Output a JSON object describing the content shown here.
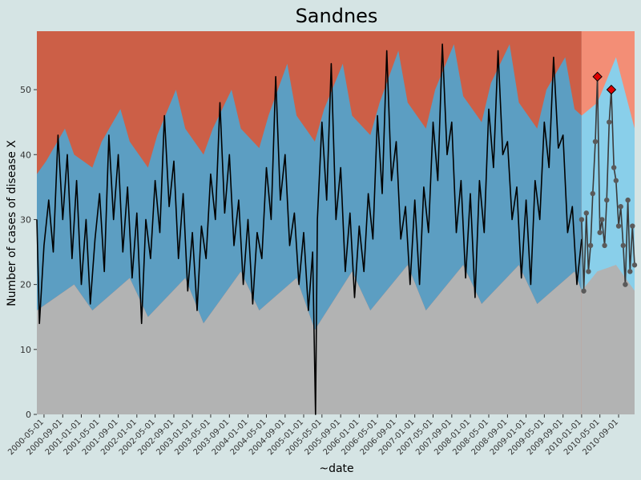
{
  "chart_data": {
    "type": "area",
    "title": "Sandnes",
    "xlabel": "~date",
    "ylabel": "Number of cases of disease X",
    "ylim": [
      0,
      59
    ],
    "yticks": [
      0,
      10,
      20,
      30,
      40,
      50
    ],
    "xlim": [
      "2000-03-15",
      "2010-12-15"
    ],
    "xticks": [
      "2000-05-01",
      "2000-09-01",
      "2001-01-01",
      "2001-05-01",
      "2001-09-01",
      "2002-01-01",
      "2002-05-01",
      "2002-09-01",
      "2003-01-01",
      "2003-05-01",
      "2003-09-01",
      "2004-01-01",
      "2004-05-01",
      "2004-09-01",
      "2005-01-01",
      "2005-05-01",
      "2005-09-01",
      "2006-01-01",
      "2006-05-01",
      "2006-09-01",
      "2007-01-01",
      "2007-05-01",
      "2007-09-01",
      "2008-01-01",
      "2008-05-01",
      "2008-09-01",
      "2009-01-01",
      "2009-05-01",
      "2009-09-01",
      "2010-01-01",
      "2010-05-01",
      "2010-09-01"
    ],
    "prediction_start": "2010-01-01",
    "series": [
      {
        "role": "lower-band",
        "x": [
          "2000-03-15",
          "2000-11-15",
          "2001-03-15",
          "2001-11-15",
          "2002-03-15",
          "2002-11-15",
          "2003-03-15",
          "2003-11-15",
          "2004-03-15",
          "2004-11-15",
          "2005-03-15",
          "2005-11-15",
          "2006-03-15",
          "2006-11-15",
          "2007-03-15",
          "2007-11-15",
          "2008-03-15",
          "2008-11-15",
          "2009-03-15",
          "2009-11-15",
          "2010-01-01",
          "2010-04-15",
          "2010-08-15",
          "2010-12-15"
        ],
        "values": [
          16,
          20,
          16,
          21,
          15,
          21,
          14,
          22,
          16,
          21,
          13,
          22,
          16,
          23,
          16,
          23,
          17,
          23,
          17,
          22,
          19,
          22,
          23,
          19
        ]
      },
      {
        "role": "upper-band",
        "x": [
          "2000-03-15",
          "2000-05-15",
          "2000-09-15",
          "2000-11-15",
          "2001-03-15",
          "2001-05-15",
          "2001-09-15",
          "2001-11-15",
          "2002-03-15",
          "2002-05-15",
          "2002-09-15",
          "2002-11-15",
          "2003-03-15",
          "2003-05-15",
          "2003-09-15",
          "2003-11-15",
          "2004-03-15",
          "2004-05-15",
          "2004-09-15",
          "2004-11-15",
          "2005-03-15",
          "2005-05-15",
          "2005-09-15",
          "2005-11-15",
          "2006-03-15",
          "2006-05-15",
          "2006-09-15",
          "2006-11-15",
          "2007-03-15",
          "2007-05-15",
          "2007-09-15",
          "2007-11-15",
          "2008-03-15",
          "2008-05-15",
          "2008-09-15",
          "2008-11-15",
          "2009-03-15",
          "2009-05-15",
          "2009-09-15",
          "2009-11-15",
          "2010-01-01",
          "2010-04-15",
          "2010-08-15",
          "2010-12-15"
        ],
        "values": [
          37,
          39,
          44,
          40,
          38,
          42,
          47,
          42,
          38,
          43,
          50,
          44,
          40,
          44,
          50,
          44,
          41,
          46,
          54,
          46,
          42,
          47,
          54,
          46,
          43,
          48,
          56,
          48,
          44,
          50,
          57,
          49,
          45,
          51,
          57,
          48,
          44,
          50,
          55,
          47,
          46,
          48,
          55,
          44
        ]
      },
      {
        "role": "observed",
        "x": [
          "2000-03-15",
          "2000-04-01",
          "2000-05-01",
          "2000-06-01",
          "2000-07-01",
          "2000-08-01",
          "2000-09-01",
          "2000-10-01",
          "2000-11-01",
          "2000-12-01",
          "2001-01-01",
          "2001-02-01",
          "2001-03-01",
          "2001-04-01",
          "2001-05-01",
          "2001-06-01",
          "2001-07-01",
          "2001-08-01",
          "2001-09-01",
          "2001-10-01",
          "2001-11-01",
          "2001-12-01",
          "2002-01-01",
          "2002-02-01",
          "2002-03-01",
          "2002-04-01",
          "2002-05-01",
          "2002-06-01",
          "2002-07-01",
          "2002-08-01",
          "2002-09-01",
          "2002-10-01",
          "2002-11-01",
          "2002-12-01",
          "2003-01-01",
          "2003-02-01",
          "2003-03-01",
          "2003-04-01",
          "2003-05-01",
          "2003-06-01",
          "2003-07-01",
          "2003-08-01",
          "2003-09-01",
          "2003-10-01",
          "2003-11-01",
          "2003-12-01",
          "2004-01-01",
          "2004-02-01",
          "2004-03-01",
          "2004-04-01",
          "2004-05-01",
          "2004-06-01",
          "2004-07-01",
          "2004-08-01",
          "2004-09-01",
          "2004-10-01",
          "2004-11-01",
          "2004-12-01",
          "2005-01-01",
          "2005-02-01",
          "2005-03-01",
          "2005-03-20",
          "2005-04-01",
          "2005-05-01",
          "2005-06-01",
          "2005-07-01",
          "2005-08-01",
          "2005-09-01",
          "2005-10-01",
          "2005-11-01",
          "2005-12-01",
          "2006-01-01",
          "2006-02-01",
          "2006-03-01",
          "2006-04-01",
          "2006-05-01",
          "2006-06-01",
          "2006-07-01",
          "2006-08-01",
          "2006-09-01",
          "2006-10-01",
          "2006-11-01",
          "2006-12-01",
          "2007-01-01",
          "2007-02-01",
          "2007-03-01",
          "2007-04-01",
          "2007-05-01",
          "2007-06-01",
          "2007-07-01",
          "2007-08-01",
          "2007-09-01",
          "2007-10-01",
          "2007-11-01",
          "2007-12-01",
          "2008-01-01",
          "2008-02-01",
          "2008-03-01",
          "2008-04-01",
          "2008-05-01",
          "2008-06-01",
          "2008-07-01",
          "2008-08-01",
          "2008-09-01",
          "2008-10-01",
          "2008-11-01",
          "2008-12-01",
          "2009-01-01",
          "2009-02-01",
          "2009-03-01",
          "2009-04-01",
          "2009-05-01",
          "2009-06-01",
          "2009-07-01",
          "2009-08-01",
          "2009-09-01",
          "2009-10-01",
          "2009-11-01",
          "2009-12-01",
          "2010-01-01"
        ],
        "values": [
          30,
          14,
          26,
          33,
          25,
          43,
          30,
          40,
          24,
          36,
          20,
          30,
          17,
          27,
          34,
          22,
          43,
          30,
          40,
          25,
          35,
          21,
          31,
          14,
          30,
          24,
          36,
          28,
          46,
          32,
          39,
          24,
          34,
          19,
          28,
          16,
          29,
          24,
          37,
          30,
          48,
          31,
          40,
          26,
          33,
          20,
          30,
          17,
          28,
          24,
          38,
          30,
          52,
          33,
          40,
          26,
          31,
          20,
          28,
          16,
          25,
          0,
          30,
          45,
          33,
          54,
          30,
          38,
          22,
          31,
          18,
          29,
          22,
          34,
          27,
          46,
          34,
          56,
          36,
          42,
          27,
          32,
          20,
          33,
          20,
          35,
          28,
          45,
          36,
          57,
          40,
          45,
          28,
          36,
          21,
          34,
          18,
          36,
          28,
          47,
          38,
          56,
          40,
          42,
          30,
          35,
          21,
          33,
          20,
          36,
          30,
          45,
          38,
          55,
          41,
          43,
          28,
          32,
          20,
          27
        ]
      },
      {
        "role": "predicted",
        "x": [
          "2010-01-01",
          "2010-01-15",
          "2010-02-01",
          "2010-02-15",
          "2010-03-01",
          "2010-03-15",
          "2010-04-01",
          "2010-04-15",
          "2010-05-01",
          "2010-05-15",
          "2010-06-01",
          "2010-06-15",
          "2010-07-01",
          "2010-07-15",
          "2010-08-01",
          "2010-08-15",
          "2010-09-01",
          "2010-09-15",
          "2010-10-01",
          "2010-10-15",
          "2010-11-01",
          "2010-11-15",
          "2010-12-01",
          "2010-12-15"
        ],
        "values": [
          30,
          19,
          31,
          22,
          26,
          34,
          42,
          52,
          28,
          30,
          26,
          33,
          45,
          50,
          38,
          36,
          29,
          32,
          26,
          20,
          33,
          22,
          29,
          23
        ]
      }
    ],
    "alarms": [
      {
        "x": "2010-04-15",
        "value": 52
      },
      {
        "x": "2010-07-15",
        "value": 50
      }
    ],
    "colors": {
      "background": "#d5e4e4",
      "top_region": "#cc5f47",
      "top_region_predicted": "#f38e76",
      "band": "#5c9ec2",
      "band_predicted": "#89cfea",
      "bottom_region": "#b2b3b3",
      "observed_line": "#000000",
      "predicted_line": "#3a3a3a",
      "predicted_point": "#5a5a5a",
      "alarm_marker": "#e00000"
    }
  }
}
